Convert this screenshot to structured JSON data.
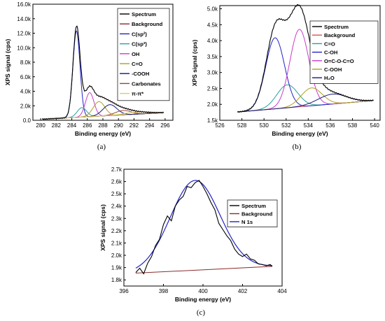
{
  "chart_data": [
    {
      "type": "line",
      "caption": "(a)",
      "xlabel": "Binding energy (eV)",
      "ylabel": "XPS signal (cps)",
      "xlim": [
        279,
        297
      ],
      "ylim": [
        0,
        16000
      ],
      "xticks": [
        280,
        282,
        284,
        286,
        288,
        290,
        292,
        294,
        296
      ],
      "xtick_labels": [
        "280",
        "282",
        "284",
        "286",
        "288",
        "290",
        "292",
        "294",
        "296"
      ],
      "yticks": [
        0,
        2000,
        4000,
        6000,
        8000,
        10000,
        12000,
        14000,
        16000
      ],
      "ytick_labels": [
        "0.0",
        "2.0k",
        "4.0k",
        "6.0k",
        "8.0k",
        "10.0k",
        "12.0k",
        "14.0k",
        "16.0k"
      ],
      "legend_position": "top-right",
      "baseline": {
        "x": [
          280.2,
          295.8
        ],
        "y": [
          150,
          1050
        ]
      },
      "components": [
        {
          "name": "C(sp2)",
          "color": "#2323c8",
          "center": 284.6,
          "sigma": 0.45,
          "amp": 11900
        },
        {
          "name": "C(sp3)",
          "color": "#2aa0a0",
          "center": 285.3,
          "sigma": 0.6,
          "amp": 1300
        },
        {
          "name": "OH",
          "color": "#c83cc8",
          "center": 286.3,
          "sigma": 0.55,
          "amp": 3300
        },
        {
          "name": "C=O",
          "color": "#b0a020",
          "center": 287.5,
          "sigma": 0.75,
          "amp": 2000
        },
        {
          "name": "-COOH",
          "color": "#1a1a7a",
          "center": 288.9,
          "sigma": 0.9,
          "amp": 1500
        },
        {
          "name": "Carbonates",
          "color": "#a04040",
          "center": 290.6,
          "sigma": 1.0,
          "amp": 600
        },
        {
          "name": "π-π*",
          "color": "#d8d060",
          "center": 292.3,
          "sigma": 1.5,
          "amp": 280
        }
      ],
      "legend": [
        {
          "label": "Spectrum",
          "color": "#000000"
        },
        {
          "label": "Background",
          "color": "#8b2d2d"
        },
        {
          "label": "C(sp²)",
          "color": "#2323c8"
        },
        {
          "label": "C(sp³)",
          "color": "#2aa0a0"
        },
        {
          "label": "OH",
          "color": "#c83cc8"
        },
        {
          "label": "C=O",
          "color": "#b0a020"
        },
        {
          "label": "-COOH",
          "color": "#1a1a7a"
        },
        {
          "label": "Carbonates",
          "color": "#a04040"
        },
        {
          "label": "π-π*",
          "color": "#d8d060"
        }
      ]
    },
    {
      "type": "line",
      "caption": "(b)",
      "xlabel": "Binding energy (eV)",
      "ylabel": "XPS signal (cps)",
      "xlim": [
        526,
        540.5
      ],
      "ylim": [
        1500,
        5100
      ],
      "xticks": [
        526,
        528,
        530,
        532,
        534,
        536,
        538,
        540
      ],
      "xtick_labels": [
        "526",
        "528",
        "530",
        "532",
        "534",
        "536",
        "538",
        "540"
      ],
      "yticks": [
        1500,
        2000,
        2500,
        3000,
        3500,
        4000,
        4500,
        5000
      ],
      "ytick_labels": [
        "1.5k",
        "2.0k",
        "2.5k",
        "3.0k",
        "3.5k",
        "4.0k",
        "4.5k",
        "5.0k"
      ],
      "legend_position": "top-right",
      "baseline": {
        "x": [
          527.6,
          539.9
        ],
        "y": [
          1760,
          2120
        ]
      },
      "components": [
        {
          "name": "C=O",
          "color": "#2aa0a0",
          "center": 532.1,
          "sigma": 0.95,
          "amp": 720
        },
        {
          "name": "C-OH",
          "color": "#2323c8",
          "center": 531.0,
          "sigma": 0.85,
          "amp": 2230
        },
        {
          "name": "O=C-O-C=O",
          "color": "#c83cc8",
          "center": 533.2,
          "sigma": 0.85,
          "amp": 2430
        },
        {
          "name": "C-OOH",
          "color": "#b0a020",
          "center": 534.3,
          "sigma": 0.95,
          "amp": 560
        },
        {
          "name": "H2O",
          "color": "#1a1a7a",
          "center": 536.2,
          "sigma": 1.3,
          "amp": 310
        }
      ],
      "legend": [
        {
          "label": "Spectrum",
          "color": "#000000"
        },
        {
          "label": "Background",
          "color": "#e05050"
        },
        {
          "label": "C=O",
          "color": "#2aa0a0"
        },
        {
          "label": "C-OH",
          "color": "#2323c8"
        },
        {
          "label": "O=C-O-C=O",
          "color": "#c83cc8"
        },
        {
          "label": "C-OOH",
          "color": "#b0a020"
        },
        {
          "label": "H₂O",
          "color": "#1a1a7a"
        }
      ]
    },
    {
      "type": "line",
      "caption": "(c)",
      "xlabel": "Binding energy (eV)",
      "ylabel": "XPS signal (cps)",
      "xlim": [
        396,
        404
      ],
      "ylim": [
        1750,
        2700
      ],
      "xticks": [
        396,
        398,
        400,
        402,
        404
      ],
      "xtick_labels": [
        "396",
        "398",
        "400",
        "402",
        "404"
      ],
      "yticks": [
        1800,
        1900,
        2000,
        2100,
        2200,
        2300,
        2400,
        2500,
        2600,
        2700
      ],
      "ytick_labels": [
        "1.8k",
        "1.9k",
        "2.0k",
        "2.1k",
        "2.2k",
        "2.3k",
        "2.4k",
        "2.5k",
        "2.6k",
        "2.7k"
      ],
      "legend_position": "top-right",
      "baseline": {
        "x": [
          396.6,
          403.5
        ],
        "y": [
          1855,
          1910
        ]
      },
      "components": [
        {
          "name": "N 1s",
          "color": "#2323c8",
          "center": 399.6,
          "sigma": 1.25,
          "amp": 730
        }
      ],
      "spectrum_points": {
        "x": [
          396.6,
          396.8,
          397.0,
          397.2,
          397.4,
          397.6,
          397.8,
          398.0,
          398.2,
          398.4,
          398.6,
          398.8,
          399.0,
          399.2,
          399.4,
          399.6,
          399.8,
          400.0,
          400.2,
          400.4,
          400.6,
          400.8,
          401.0,
          401.2,
          401.4,
          401.6,
          401.8,
          402.0,
          402.2,
          402.4,
          402.6,
          402.8,
          403.0,
          403.2,
          403.4,
          403.5
        ],
        "y": [
          1860,
          1895,
          1850,
          1935,
          1990,
          2080,
          2130,
          2250,
          2320,
          2280,
          2400,
          2450,
          2480,
          2560,
          2550,
          2590,
          2610,
          2560,
          2500,
          2430,
          2370,
          2260,
          2210,
          2160,
          2120,
          2050,
          2010,
          1990,
          2010,
          1970,
          1960,
          1930,
          1925,
          1915,
          1925,
          1910
        ]
      },
      "legend": [
        {
          "label": "Spectrum",
          "color": "#000000"
        },
        {
          "label": "Background",
          "color": "#8b2d2d"
        },
        {
          "label": "N 1s",
          "color": "#2323c8"
        }
      ]
    }
  ]
}
